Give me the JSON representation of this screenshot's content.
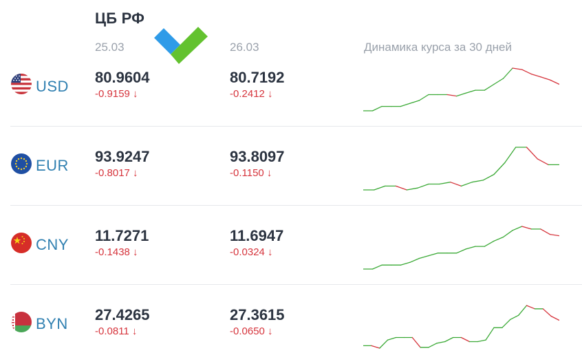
{
  "header": {
    "source_title": "ЦБ РФ",
    "date_1": "25.03",
    "date_2": "26.03",
    "sparkline_caption": "Динамика курса за 30 дней"
  },
  "colors": {
    "up": "#3aa935",
    "down": "#d6343c",
    "code": "#2f7fb0",
    "logo_blue": "#2f9be8",
    "logo_green": "#63c22f"
  },
  "rows": [
    {
      "code": "USD",
      "flag": "us-flag-icon",
      "value_1": "80.9604",
      "change_1": "-0.9159 ↓",
      "value_2": "80.7192",
      "change_2": "-0.2412 ↓",
      "trend": [
        78.2,
        78.2,
        78.5,
        78.5,
        78.5,
        78.7,
        78.9,
        79.3,
        79.3,
        79.3,
        79.2,
        79.4,
        79.6,
        79.6,
        80.0,
        80.4,
        81.1,
        81.0,
        80.7,
        80.5,
        80.3,
        80.0
      ]
    },
    {
      "code": "EUR",
      "flag": "eu-flag-icon",
      "value_1": "93.9247",
      "change_1": "-0.8017 ↓",
      "value_2": "93.8097",
      "change_2": "-0.1150 ↓",
      "trend": [
        91.0,
        91.0,
        91.2,
        91.2,
        91.0,
        91.1,
        91.3,
        91.3,
        91.4,
        91.2,
        91.4,
        91.5,
        91.8,
        92.4,
        93.2,
        93.2,
        92.6,
        92.3,
        92.3
      ]
    },
    {
      "code": "CNY",
      "flag": "cn-flag-icon",
      "value_1": "11.7271",
      "change_1": "-0.1438 ↓",
      "value_2": "11.6947",
      "change_2": "-0.0324 ↓",
      "trend": [
        11.4,
        11.4,
        11.43,
        11.43,
        11.43,
        11.45,
        11.48,
        11.5,
        11.52,
        11.52,
        11.52,
        11.55,
        11.57,
        11.57,
        11.61,
        11.64,
        11.69,
        11.72,
        11.7,
        11.7,
        11.66,
        11.65
      ]
    },
    {
      "code": "BYN",
      "flag": "by-flag-icon",
      "value_1": "27.4265",
      "change_1": "-0.0811 ↓",
      "value_2": "27.3615",
      "change_2": "-0.0650 ↓",
      "trend": [
        27.0,
        27.0,
        26.97,
        27.07,
        27.1,
        27.1,
        27.1,
        26.98,
        26.98,
        27.03,
        27.05,
        27.1,
        27.1,
        27.05,
        27.05,
        27.07,
        27.22,
        27.22,
        27.32,
        27.37,
        27.49,
        27.45,
        27.45,
        27.36,
        27.31
      ]
    }
  ]
}
